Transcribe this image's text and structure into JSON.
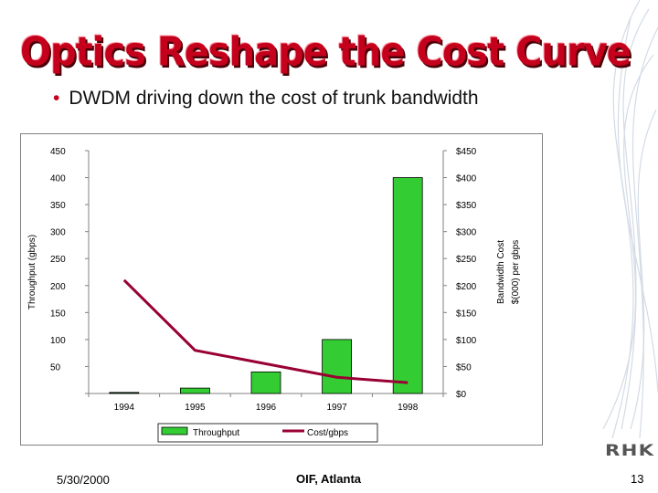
{
  "slide": {
    "title": "Optics Reshape the Cost Curve",
    "bullet": "DWDM driving down the cost of trunk bandwidth",
    "footer_date": "5/30/2000",
    "footer_venue": "OIF, Atlanta",
    "page_number": "13",
    "logo_text": "RHK",
    "title_color": "#c4001c"
  },
  "chart_data": {
    "type": "bar",
    "categories": [
      "1994",
      "1995",
      "1996",
      "1997",
      "1998"
    ],
    "series": [
      {
        "name": "Throughput",
        "kind": "bar",
        "axis": "left",
        "color": "#33cc33",
        "values": [
          2,
          10,
          40,
          100,
          400
        ]
      },
      {
        "name": "Cost/gbps",
        "kind": "line",
        "axis": "right",
        "color": "#990033",
        "values": [
          210,
          80,
          55,
          30,
          20
        ]
      }
    ],
    "y_left": {
      "label": "Throughput (gbps)",
      "min": 0,
      "max": 450,
      "ticks": [
        "",
        "50",
        "100",
        "150",
        "200",
        "250",
        "300",
        "350",
        "400",
        "450"
      ]
    },
    "y_right": {
      "label_line1": "Bandwidth Cost",
      "label_line2": "$(000) per gbps",
      "min": 0,
      "max": 450,
      "ticks": [
        "$0",
        "$50",
        "$100",
        "$150",
        "$200",
        "$250",
        "$300",
        "$350",
        "$400",
        "$450"
      ]
    },
    "legend": {
      "placement": "bottom",
      "entries": [
        "Throughput",
        "Cost/gbps"
      ]
    },
    "gridlines": false
  }
}
